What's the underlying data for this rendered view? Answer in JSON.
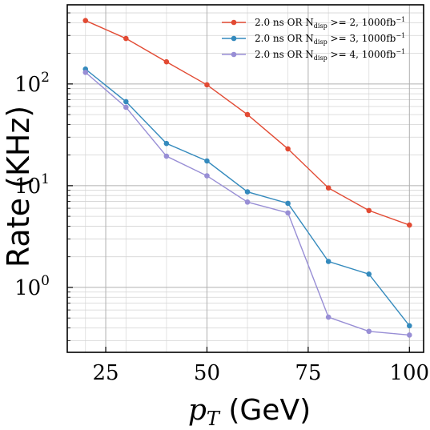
{
  "chart_data": {
    "type": "line",
    "title": "",
    "xlabel": "p_T (GeV)",
    "ylabel": "Rate (KHz)",
    "xlim": [
      15.5,
      103.5
    ],
    "ylim": [
      0.23,
      600
    ],
    "yscale": "log",
    "grid": true,
    "grid_minor": true,
    "legend_position": "top-right",
    "x_ticks": [
      25,
      50,
      75,
      100
    ],
    "y_ticks": [
      {
        "value": 1,
        "base": "10",
        "exp": "0"
      },
      {
        "value": 10,
        "base": "10",
        "exp": "1"
      },
      {
        "value": 100,
        "base": "10",
        "exp": "2"
      }
    ],
    "x": [
      20,
      30,
      40,
      50,
      60,
      70,
      80,
      90,
      100
    ],
    "series": [
      {
        "name": "2.0 ns OR N_disp >= 2, 1000fb^-1",
        "legend_prefix": "2.0 ns OR N",
        "legend_sub": "disp",
        "legend_mid": " >= 2, 1000fb",
        "legend_sup": "−1",
        "color": "#e24a33",
        "values": [
          420,
          280,
          165,
          98,
          50,
          23,
          9.5,
          5.7,
          4.1
        ]
      },
      {
        "name": "2.0 ns OR N_disp >= 3, 1000fb^-1",
        "legend_prefix": "2.0 ns OR N",
        "legend_sub": "disp",
        "legend_mid": " >= 3, 1000fb",
        "legend_sup": "−1",
        "color": "#348abd",
        "values": [
          140,
          67,
          26,
          17.5,
          8.7,
          6.7,
          1.8,
          1.35,
          0.42
        ]
      },
      {
        "name": "2.0 ns OR N_disp >= 4, 1000fb^-1",
        "legend_prefix": "2.0 ns OR N",
        "legend_sub": "disp",
        "legend_mid": " >= 4, 1000fb",
        "legend_sup": "−1",
        "color": "#988ed5",
        "values": [
          130,
          59,
          19.5,
          12.5,
          6.9,
          5.4,
          0.51,
          0.37,
          0.34
        ]
      }
    ]
  }
}
